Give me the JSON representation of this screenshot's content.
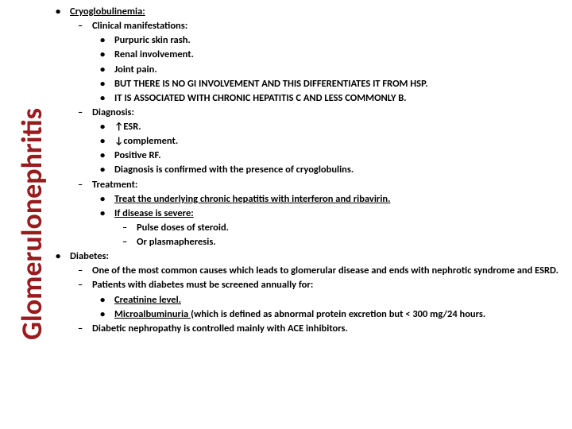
{
  "sidebar": {
    "title": "Glomerulonephritis"
  },
  "colors": {
    "accent": "#9a1b1e",
    "text": "#000000",
    "bg": "#ffffff"
  },
  "fonts": {
    "body_size": 12.5,
    "title_size": 36,
    "weight": "bold",
    "family": "Calibri"
  },
  "bullets": {
    "level0": "•",
    "level1": "–",
    "level2": "•",
    "level3": "–"
  },
  "items": [
    {
      "lvl": 0,
      "text": "Cryoglobulinemia:",
      "u": true
    },
    {
      "lvl": 1,
      "text": "Clinical manifestations:"
    },
    {
      "lvl": 2,
      "text": "Purpuric skin rash."
    },
    {
      "lvl": 2,
      "text": "Renal involvement."
    },
    {
      "lvl": 2,
      "text": "Joint pain."
    },
    {
      "lvl": 2,
      "text": "BUT THERE IS NO GI INVOLVEMENT AND THIS DIFFERENTIATES IT FROM HSP."
    },
    {
      "lvl": 2,
      "text": "IT IS ASSOCIATED WITH CHRONIC HEPATITIS C AND LESS COMMONLY B."
    },
    {
      "lvl": 1,
      "text": "Diagnosis:"
    },
    {
      "lvl": 2,
      "text": "↑ESR."
    },
    {
      "lvl": 2,
      "text": "↓complement."
    },
    {
      "lvl": 2,
      "text": "Positive RF."
    },
    {
      "lvl": 2,
      "text": "Diagnosis is confirmed with the presence of cryoglobulins."
    },
    {
      "lvl": 1,
      "text": "Treatment:"
    },
    {
      "lvl": 2,
      "text": "Treat the underlying chronic hepatitis with interferon and ribavirin.",
      "u": true
    },
    {
      "lvl": 2,
      "text": "If disease is severe:",
      "u": true
    },
    {
      "lvl": 3,
      "text": "Pulse doses of steroid."
    },
    {
      "lvl": 3,
      "text": "Or plasmapheresis."
    },
    {
      "lvl": 0,
      "text": "Diabetes:"
    },
    {
      "lvl": 1,
      "text": "One of the most common causes which leads to glomerular disease and ends with nephrotic syndrome and ESRD.",
      "justify": true
    },
    {
      "lvl": 1,
      "text": "Patients with diabetes must be screened annually for:"
    },
    {
      "lvl": 2,
      "text": "Creatinine level.",
      "u": true
    },
    {
      "lvl": 2,
      "special": "microalb"
    },
    {
      "lvl": 1,
      "text": "Diabetic nephropathy is controlled mainly with ACE inhibitors."
    }
  ],
  "microalb": {
    "part1": "Microalbuminuria ",
    "part2": "(which is defined as abnormal protein excretion but < 300 mg/24 hours."
  }
}
